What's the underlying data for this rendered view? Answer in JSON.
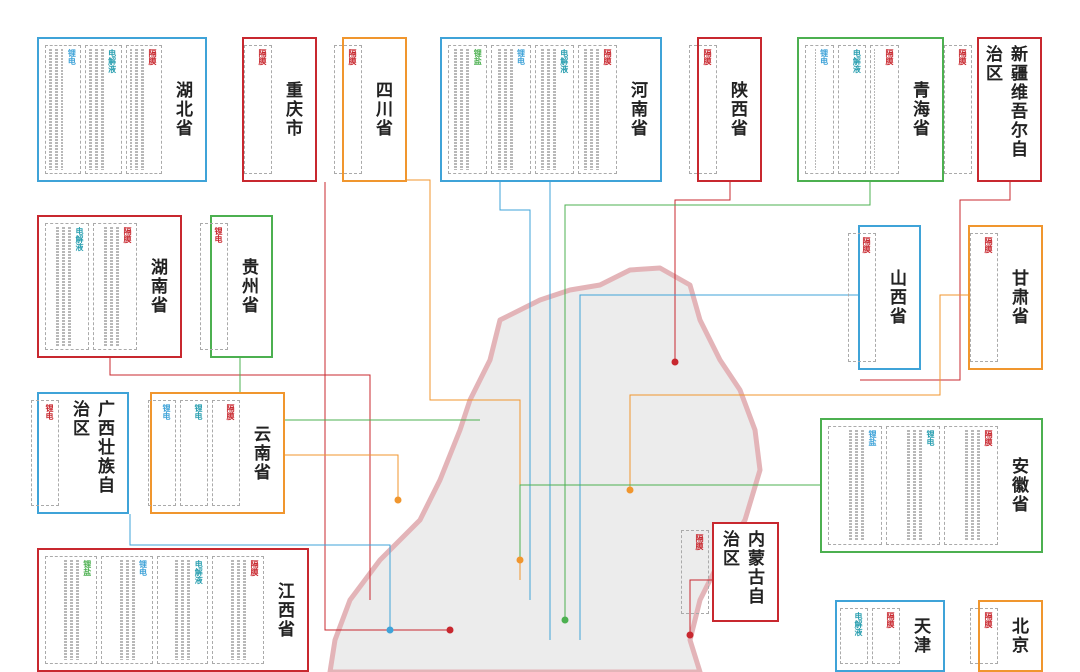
{
  "boxes": [
    {
      "title": "湖北省",
      "color": "#3fa3d8",
      "groups": [
        {
          "tag": "隔膜"
        },
        {
          "tag": "电解液"
        },
        {
          "tag": "锂电"
        }
      ]
    },
    {
      "title": "重庆市",
      "color": "#c8282f",
      "groups": [
        {
          "tag": "隔膜"
        }
      ]
    },
    {
      "title": "四川省",
      "color": "#f0962e",
      "groups": [
        {
          "tag": "隔膜"
        }
      ]
    },
    {
      "title": "河南省",
      "color": "#3fa3d8",
      "groups": [
        {
          "tag": "隔膜"
        },
        {
          "tag": "电解液"
        },
        {
          "tag": "锂电"
        },
        {
          "tag": "锂盐"
        }
      ]
    },
    {
      "title": "陕西省",
      "color": "#c8282f",
      "groups": [
        {
          "tag": "隔膜"
        }
      ]
    },
    {
      "title": "青海省",
      "color": "#4cb050",
      "groups": [
        {
          "tag": "隔膜"
        },
        {
          "tag": "电解液"
        },
        {
          "tag": "锂电"
        }
      ]
    },
    {
      "title": "新疆维吾尔自治区",
      "color": "#c8282f",
      "groups": [
        {
          "tag": "隔膜"
        }
      ]
    },
    {
      "title": "湖南省",
      "color": "#c8282f",
      "groups": [
        {
          "tag": "隔膜"
        },
        {
          "tag": "电解液"
        }
      ]
    },
    {
      "title": "贵州省",
      "color": "#4cb050",
      "groups": [
        {
          "tag": "锂电"
        }
      ]
    },
    {
      "title": "山西省",
      "color": "#3fa3d8",
      "groups": [
        {
          "tag": "隔膜"
        }
      ]
    },
    {
      "title": "甘肃省",
      "color": "#f0962e",
      "groups": [
        {
          "tag": "隔膜"
        }
      ]
    },
    {
      "title": "广西壮族自治区",
      "color": "#3fa3d8",
      "groups": [
        {
          "tag": "锂电"
        }
      ]
    },
    {
      "title": "云南省",
      "color": "#f0962e",
      "groups": [
        {
          "tag": "隔膜"
        },
        {
          "tag": "锂电"
        },
        {
          "tag": "锂电"
        }
      ]
    },
    {
      "title": "安徽省",
      "color": "#4cb050",
      "groups": [
        {
          "tag": "隔膜"
        },
        {
          "tag": "锂电"
        },
        {
          "tag": "锂盐"
        }
      ]
    },
    {
      "title": "内蒙古自治区",
      "color": "#c8282f",
      "groups": [
        {
          "tag": "隔膜"
        }
      ]
    },
    {
      "title": "江西省",
      "color": "#c8282f",
      "groups": [
        {
          "tag": "隔膜"
        },
        {
          "tag": "电解液"
        },
        {
          "tag": "锂电"
        },
        {
          "tag": "锂盐"
        }
      ]
    },
    {
      "title": "天津",
      "color": "#3fa3d8",
      "groups": [
        {
          "tag": "隔膜"
        },
        {
          "tag": "电解液"
        }
      ]
    },
    {
      "title": "北京",
      "color": "#f0962e",
      "groups": [
        {
          "tag": "隔膜"
        }
      ]
    }
  ]
}
